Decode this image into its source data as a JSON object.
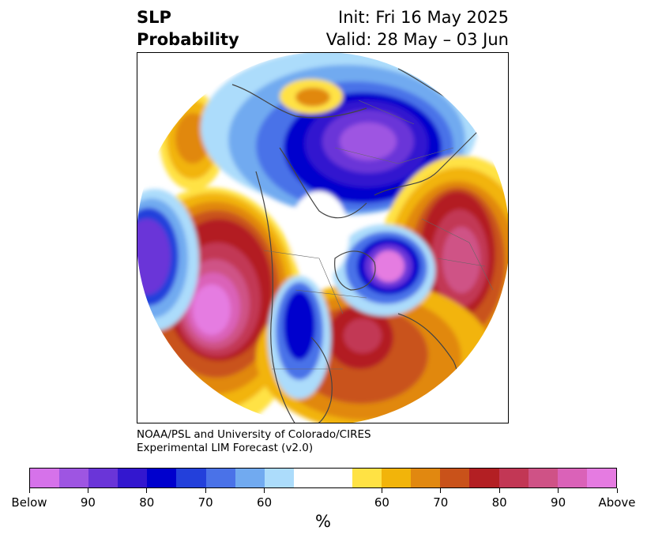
{
  "title": {
    "left_line1": "SLP",
    "left_line2": "Probability",
    "right_line1": "Init: Fri 16 May 2025",
    "right_line2": "Valid: 28 May – 03 Jun"
  },
  "credit": {
    "line1": "NOAA/PSL and University of Colorado/CIRES",
    "line2": "Experimental LIM Forecast (v2.0)"
  },
  "colorbar": {
    "colors": [
      "#d672ea",
      "#9e55e2",
      "#6a35d8",
      "#3317cf",
      "#0000cd",
      "#2340db",
      "#4a72e8",
      "#71aaf0",
      "#acdcfb",
      "#ffffff",
      "#ffffff",
      "#ffe244",
      "#f2b40a",
      "#e18810",
      "#c9521a",
      "#b31f23",
      "#c23755",
      "#cf5286",
      "#da62b8",
      "#e57be1"
    ],
    "tick_labels": [
      "Below",
      "90",
      "80",
      "70",
      "60",
      "60",
      "70",
      "80",
      "90",
      "Above"
    ],
    "units": "%"
  },
  "map": {
    "projection": "north-polar-stereographic",
    "variable": "sea level pressure tercile probability",
    "features": [
      {
        "region": "Gulf of Alaska / NE Pacific",
        "category": "above",
        "peak": "Above"
      },
      {
        "region": "Western Russia / Europe",
        "category": "above",
        "peak": "90"
      },
      {
        "region": "Eastern United States",
        "category": "above",
        "peak": "80"
      },
      {
        "region": "Arctic / Eastern Siberia",
        "category": "below",
        "peak": "90"
      },
      {
        "region": "Greenland Sea",
        "category": "below",
        "peak": "Below"
      },
      {
        "region": "Central North America",
        "category": "below",
        "peak": "80"
      },
      {
        "region": "West-central Pacific",
        "category": "below",
        "peak": "90"
      }
    ]
  }
}
